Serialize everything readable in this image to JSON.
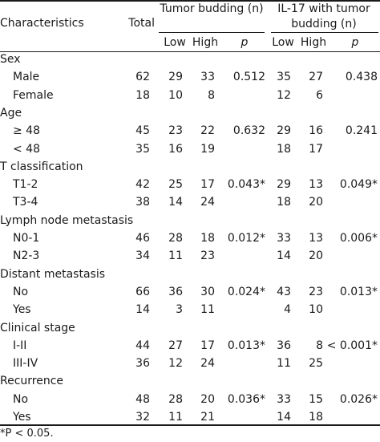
{
  "header": {
    "characteristics": "Characteristics",
    "total": "Total",
    "tumor_budding": "Tumor budding (n)",
    "il17_tumor_budding": "IL-17 with tumor budding (n)",
    "low": "Low",
    "high": "High",
    "p": "p"
  },
  "rows": [
    {
      "label": "Sex",
      "type": "group"
    },
    {
      "label": "Male",
      "type": "item",
      "total": "62",
      "tb_low": "29",
      "tb_high": "33",
      "tb_p": "0.512",
      "il_low": "35",
      "il_high": "27",
      "il_p": "0.438"
    },
    {
      "label": "Female",
      "type": "item",
      "total": "18",
      "tb_low": "10",
      "tb_high": "8",
      "tb_p": "",
      "il_low": "12",
      "il_high": "6",
      "il_p": ""
    },
    {
      "label": "Age",
      "type": "group"
    },
    {
      "label": "≥ 48",
      "type": "item",
      "total": "45",
      "tb_low": "23",
      "tb_high": "22",
      "tb_p": "0.632",
      "il_low": "29",
      "il_high": "16",
      "il_p": "0.241"
    },
    {
      "label": "< 48",
      "type": "item",
      "total": "35",
      "tb_low": "16",
      "tb_high": "19",
      "tb_p": "",
      "il_low": "18",
      "il_high": "17",
      "il_p": ""
    },
    {
      "label": "T classification",
      "type": "group"
    },
    {
      "label": "T1-2",
      "type": "item",
      "total": "42",
      "tb_low": "25",
      "tb_high": "17",
      "tb_p": "0.043*",
      "il_low": "29",
      "il_high": "13",
      "il_p": "0.049*"
    },
    {
      "label": "T3-4",
      "type": "item",
      "total": "38",
      "tb_low": "14",
      "tb_high": "24",
      "tb_p": "",
      "il_low": "18",
      "il_high": "20",
      "il_p": ""
    },
    {
      "label": "Lymph node metastasis",
      "type": "group"
    },
    {
      "label": "N0-1",
      "type": "item",
      "total": "46",
      "tb_low": "28",
      "tb_high": "18",
      "tb_p": "0.012*",
      "il_low": "33",
      "il_high": "13",
      "il_p": "0.006*"
    },
    {
      "label": "N2-3",
      "type": "item",
      "total": "34",
      "tb_low": "11",
      "tb_high": "23",
      "tb_p": "",
      "il_low": "14",
      "il_high": "20",
      "il_p": ""
    },
    {
      "label": "Distant metastasis",
      "type": "group"
    },
    {
      "label": "No",
      "type": "item",
      "total": "66",
      "tb_low": "36",
      "tb_high": "30",
      "tb_p": "0.024*",
      "il_low": "43",
      "il_high": "23",
      "il_p": "0.013*"
    },
    {
      "label": "Yes",
      "type": "item",
      "total": "14",
      "tb_low": "3",
      "tb_high": "11",
      "tb_p": "",
      "il_low": "4",
      "il_high": "10",
      "il_p": ""
    },
    {
      "label": "Clinical stage",
      "type": "group"
    },
    {
      "label": "I-II",
      "type": "item",
      "total": "44",
      "tb_low": "27",
      "tb_high": "17",
      "tb_p": "0.013*",
      "il_low": "36",
      "il_high": "8",
      "il_p": "< 0.001*"
    },
    {
      "label": "III-IV",
      "type": "item",
      "total": "36",
      "tb_low": "12",
      "tb_high": "24",
      "tb_p": "",
      "il_low": "11",
      "il_high": "25",
      "il_p": ""
    },
    {
      "label": "Recurrence",
      "type": "group"
    },
    {
      "label": "No",
      "type": "item",
      "total": "48",
      "tb_low": "28",
      "tb_high": "20",
      "tb_p": "0.036*",
      "il_low": "33",
      "il_high": "15",
      "il_p": "0.026*"
    },
    {
      "label": "Yes",
      "type": "item",
      "total": "32",
      "tb_low": "11",
      "tb_high": "21",
      "tb_p": "",
      "il_low": "14",
      "il_high": "18",
      "il_p": ""
    }
  ],
  "footnote": "*P < 0.05."
}
